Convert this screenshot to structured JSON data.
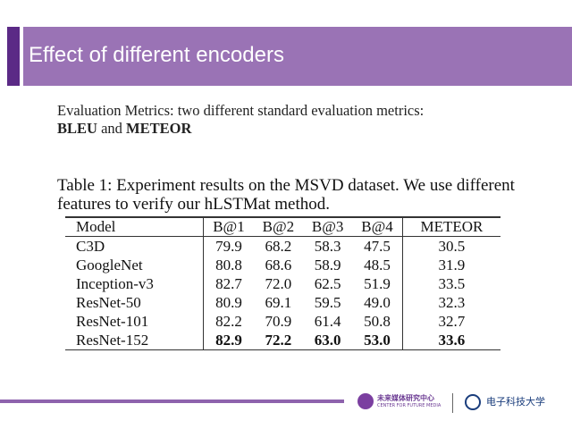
{
  "header": {
    "title": "Effect of different encoders"
  },
  "intro": {
    "text": "Evaluation Metrics: two different standard evaluation metrics:",
    "metric1": "BLEU",
    "connector": "and",
    "metric2": "METEOR"
  },
  "table": {
    "caption": "Table 1: Experiment results on the MSVD dataset. We use different features to verify our hLSTMat method.",
    "columns": [
      "Model",
      "B@1",
      "B@2",
      "B@3",
      "B@4",
      "METEOR"
    ],
    "rows": [
      [
        "C3D",
        "79.9",
        "68.2",
        "58.3",
        "47.5",
        "30.5"
      ],
      [
        "GoogleNet",
        "80.8",
        "68.6",
        "58.9",
        "48.5",
        "31.9"
      ],
      [
        "Inception-v3",
        "82.7",
        "72.0",
        "62.5",
        "51.9",
        "33.5"
      ],
      [
        "ResNet-50",
        "80.9",
        "69.1",
        "59.5",
        "49.0",
        "32.3"
      ],
      [
        "ResNet-101",
        "82.2",
        "70.9",
        "61.4",
        "50.8",
        "32.7"
      ],
      [
        "ResNet-152",
        "82.9",
        "72.2",
        "63.0",
        "53.0",
        "33.6"
      ]
    ]
  },
  "footer": {
    "logo1_cn": "未来媒体研究中心",
    "logo1_en": "CENTER FOR FUTURE MEDIA",
    "logo2": "电子科技大学"
  }
}
